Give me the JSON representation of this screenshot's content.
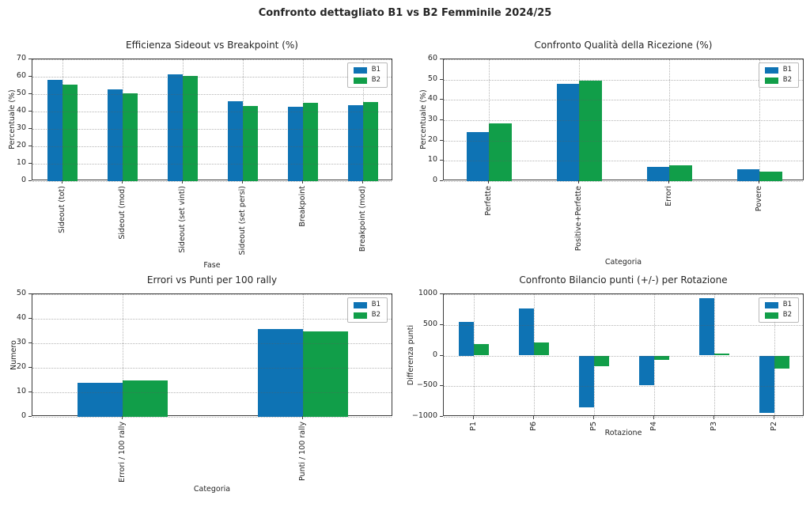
{
  "page_title": "Confronto dettagliato B1 vs B2 Femminile 2024/25",
  "colors": {
    "b1": "#0e73b4",
    "b2": "#119e49"
  },
  "chart_data": [
    {
      "type": "bar",
      "title": "Efficienza Sideout vs Breakpoint (%)",
      "xlabel": "Fase",
      "ylabel": "Percentuale (%)",
      "categories": [
        "Sideout (tot)",
        "Sideout (mod)",
        "Sideout (set vinti)",
        "Sideout (set persi)",
        "Breakpoint",
        "Breakpoint (mod)"
      ],
      "series": [
        {
          "name": "B1",
          "color": "#0e73b4",
          "values": [
            58.0,
            52.8,
            61.3,
            46.0,
            42.9,
            43.5
          ]
        },
        {
          "name": "B2",
          "color": "#119e49",
          "values": [
            55.6,
            50.5,
            60.4,
            43.3,
            44.8,
            45.6
          ]
        }
      ],
      "ylim": [
        0,
        70
      ],
      "yticks": [
        0,
        10,
        20,
        30,
        40,
        50,
        60,
        70
      ],
      "grid": true,
      "legend_position": "upper right"
    },
    {
      "type": "bar",
      "title": "Confronto Qualità della Ricezione (%)",
      "xlabel": "Categoria",
      "ylabel": "Percentuale (%)",
      "categories": [
        "Perfette",
        "Positive+Perfette",
        "Errori",
        "Povere"
      ],
      "series": [
        {
          "name": "B1",
          "color": "#0e73b4",
          "values": [
            24.2,
            48.0,
            7.2,
            6.0
          ]
        },
        {
          "name": "B2",
          "color": "#119e49",
          "values": [
            28.4,
            49.6,
            7.9,
            4.8
          ]
        }
      ],
      "ylim": [
        0,
        60
      ],
      "yticks": [
        0,
        10,
        20,
        30,
        40,
        50,
        60
      ],
      "grid": true,
      "legend_position": "upper right"
    },
    {
      "type": "bar",
      "title": "Errori vs Punti per 100 rally",
      "xlabel": "Categoria",
      "ylabel": "Numero",
      "categories": [
        "Errori / 100 rally",
        "Punti / 100 rally"
      ],
      "series": [
        {
          "name": "B1",
          "color": "#0e73b4",
          "values": [
            14.0,
            35.8
          ]
        },
        {
          "name": "B2",
          "color": "#119e49",
          "values": [
            14.8,
            34.9
          ]
        }
      ],
      "ylim": [
        0,
        50
      ],
      "yticks": [
        0,
        10,
        20,
        30,
        40,
        50
      ],
      "grid": true,
      "legend_position": "upper right"
    },
    {
      "type": "bar",
      "title": "Confronto Bilancio punti (+/-) per Rotazione",
      "xlabel": "Rotazione",
      "ylabel": "Differenza punti",
      "categories": [
        "P1",
        "P6",
        "P5",
        "P4",
        "P3",
        "P2"
      ],
      "series": [
        {
          "name": "B1",
          "color": "#0e73b4",
          "values": [
            550,
            770,
            -850,
            -490,
            930,
            -930
          ]
        },
        {
          "name": "B2",
          "color": "#119e49",
          "values": [
            190,
            210,
            -175,
            -75,
            30,
            -210
          ]
        }
      ],
      "ylim": [
        -1000,
        1000
      ],
      "yticks": [
        -1000,
        -500,
        0,
        500,
        1000
      ],
      "grid": true,
      "legend_position": "upper right"
    }
  ]
}
